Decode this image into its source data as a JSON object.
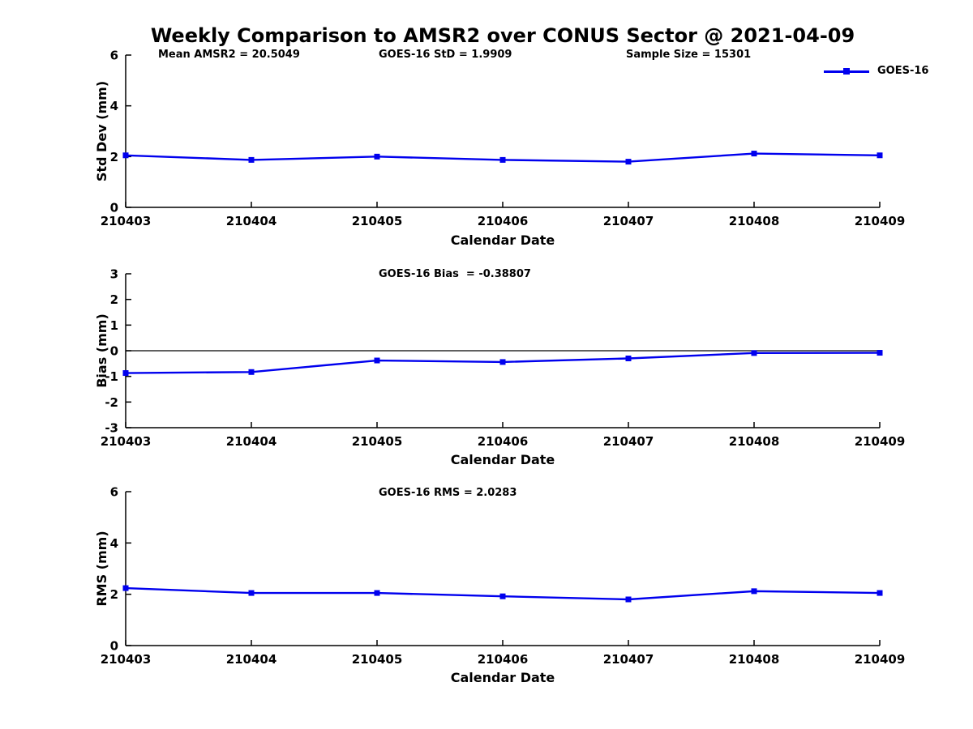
{
  "title": "Weekly Comparison to AMSR2 over CONUS Sector @ 2021-04-09",
  "colors": {
    "series": "#0000EE",
    "axis": "#000000",
    "text": "#000000",
    "background": "#FFFFFF"
  },
  "chart_data": [
    {
      "type": "line",
      "ylabel": "Std Dev (mm)",
      "xlabel": "Calendar Date",
      "categories": [
        "210403",
        "210404",
        "210405",
        "210406",
        "210407",
        "210408",
        "210409"
      ],
      "series": [
        {
          "name": "GOES-16",
          "values": [
            2.05,
            1.87,
            2.0,
            1.87,
            1.8,
            2.12,
            2.05
          ]
        }
      ],
      "ylim": [
        0,
        6
      ],
      "yticks": [
        0,
        2,
        4,
        6
      ],
      "grid": false,
      "zero_line": false,
      "marker": "square",
      "annotations": [
        "Mean AMSR2 = 20.5049",
        "GOES-16 StD = 1.9909",
        "Sample Size = 15301"
      ],
      "legend": {
        "label": "GOES-16",
        "position": "top-right"
      }
    },
    {
      "type": "line",
      "ylabel": "Bias (mm)",
      "xlabel": "Calendar Date",
      "categories": [
        "210403",
        "210404",
        "210405",
        "210406",
        "210407",
        "210408",
        "210409"
      ],
      "series": [
        {
          "name": "GOES-16",
          "values": [
            -0.87,
            -0.83,
            -0.38,
            -0.44,
            -0.3,
            -0.09,
            -0.08
          ]
        }
      ],
      "ylim": [
        -3,
        3
      ],
      "yticks": [
        -3,
        -2,
        -1,
        0,
        1,
        2,
        3
      ],
      "grid": false,
      "zero_line": true,
      "marker": "square",
      "annotations": [
        "GOES-16 Bias  = -0.38807"
      ]
    },
    {
      "type": "line",
      "ylabel": "RMS (mm)",
      "xlabel": "Calendar Date",
      "categories": [
        "210403",
        "210404",
        "210405",
        "210406",
        "210407",
        "210408",
        "210409"
      ],
      "series": [
        {
          "name": "GOES-16",
          "values": [
            2.24,
            2.05,
            2.05,
            1.92,
            1.8,
            2.12,
            2.05
          ]
        }
      ],
      "ylim": [
        0,
        6
      ],
      "yticks": [
        0,
        2,
        4,
        6
      ],
      "grid": false,
      "zero_line": false,
      "marker": "square",
      "annotations": [
        "GOES-16 RMS = 2.0283"
      ]
    }
  ]
}
